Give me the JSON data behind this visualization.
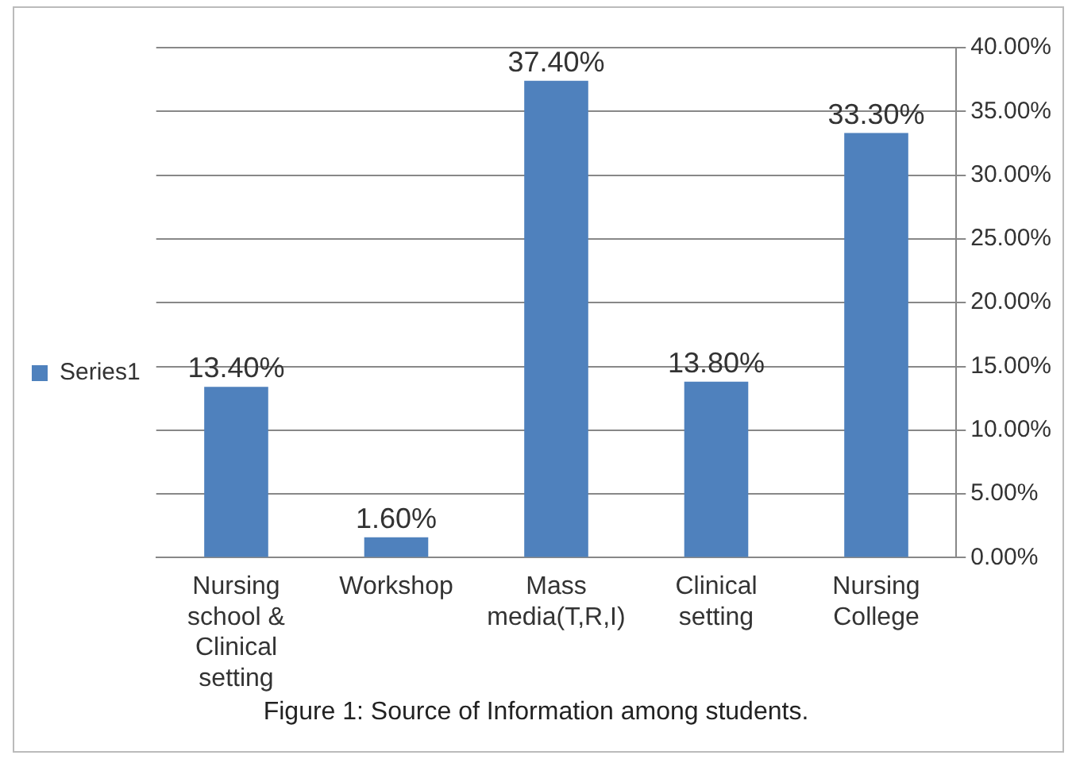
{
  "chart_data": {
    "type": "bar",
    "categories": [
      "Nursing school & Clinical setting",
      "Workshop",
      "Mass media(T,R,I)",
      "Clinical setting",
      "Nursing College"
    ],
    "series": [
      {
        "name": "Series1",
        "color": "#4f81bd",
        "values": [
          13.4,
          1.6,
          37.4,
          13.8,
          33.3
        ]
      }
    ],
    "value_labels": [
      "13.40%",
      "1.60%",
      "37.40%",
      "13.80%",
      "33.30%"
    ],
    "ylim": [
      0,
      40
    ],
    "yticks": [
      {
        "value": 0,
        "label": "0.00%"
      },
      {
        "value": 5,
        "label": "5.00%"
      },
      {
        "value": 10,
        "label": "10.00%"
      },
      {
        "value": 15,
        "label": "15.00%"
      },
      {
        "value": 20,
        "label": "20.00%"
      },
      {
        "value": 25,
        "label": "25.00%"
      },
      {
        "value": 30,
        "label": "30.00%"
      },
      {
        "value": 35,
        "label": "35.00%"
      },
      {
        "value": 40,
        "label": "40.00%"
      }
    ],
    "grid": "y",
    "legend": "left",
    "annotations": [
      "Figure 1: Source of Information among students."
    ]
  }
}
